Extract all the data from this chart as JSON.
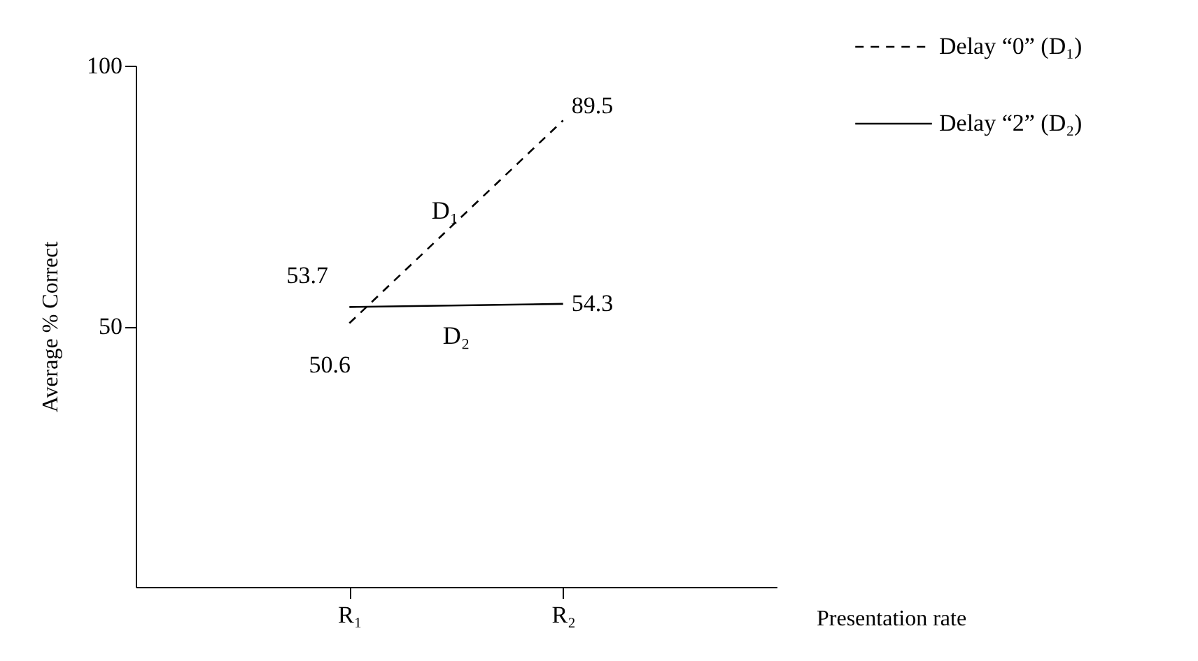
{
  "chart_data": {
    "type": "line",
    "xlabel": "Presentation rate",
    "ylabel": "Average % Correct",
    "categories": [
      "R₁",
      "R₂"
    ],
    "series": [
      {
        "name": "Delay “0” (D₁)",
        "color": "#000000",
        "line_style": "dashed",
        "values": [
          50.6,
          89.5
        ]
      },
      {
        "name": "Delay “2” (D₂)",
        "color": "#000000",
        "line_style": "solid",
        "values": [
          53.7,
          54.3
        ]
      }
    ],
    "ylim": [
      0,
      100
    ],
    "yticks": [
      50,
      100
    ],
    "grid": false,
    "legend": "top right",
    "data_labels": true,
    "marker": "none",
    "annotations": [
      "D₁",
      "D₂"
    ]
  }
}
